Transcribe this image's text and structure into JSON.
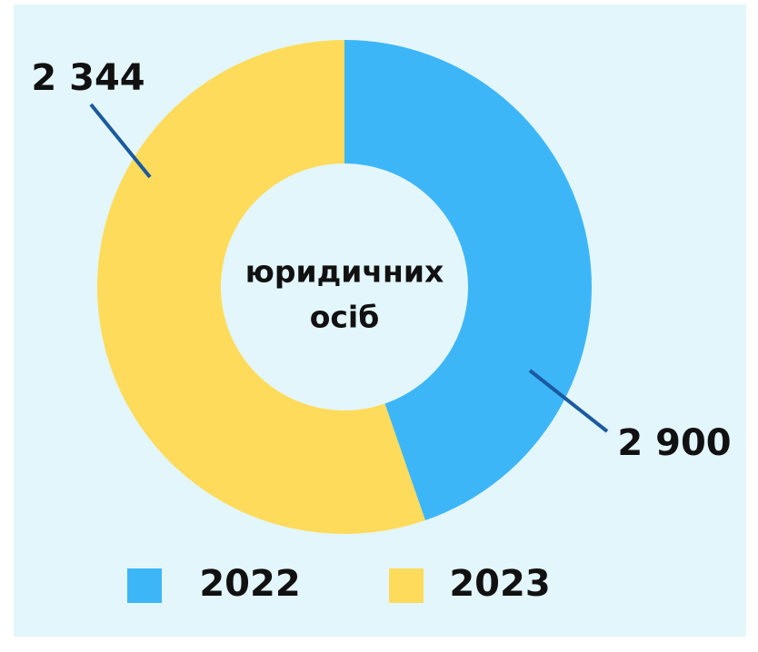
{
  "chart_data": {
    "type": "pie",
    "categories": [
      "2022",
      "2023"
    ],
    "values": [
      2344,
      2900
    ],
    "value_labels": [
      "2 344",
      "2 900"
    ],
    "colors": [
      "#3db6f8",
      "#fedb5a"
    ],
    "center_label": [
      "юридичних",
      "осіб"
    ],
    "start_angle": 0,
    "direction": "clockwise"
  }
}
